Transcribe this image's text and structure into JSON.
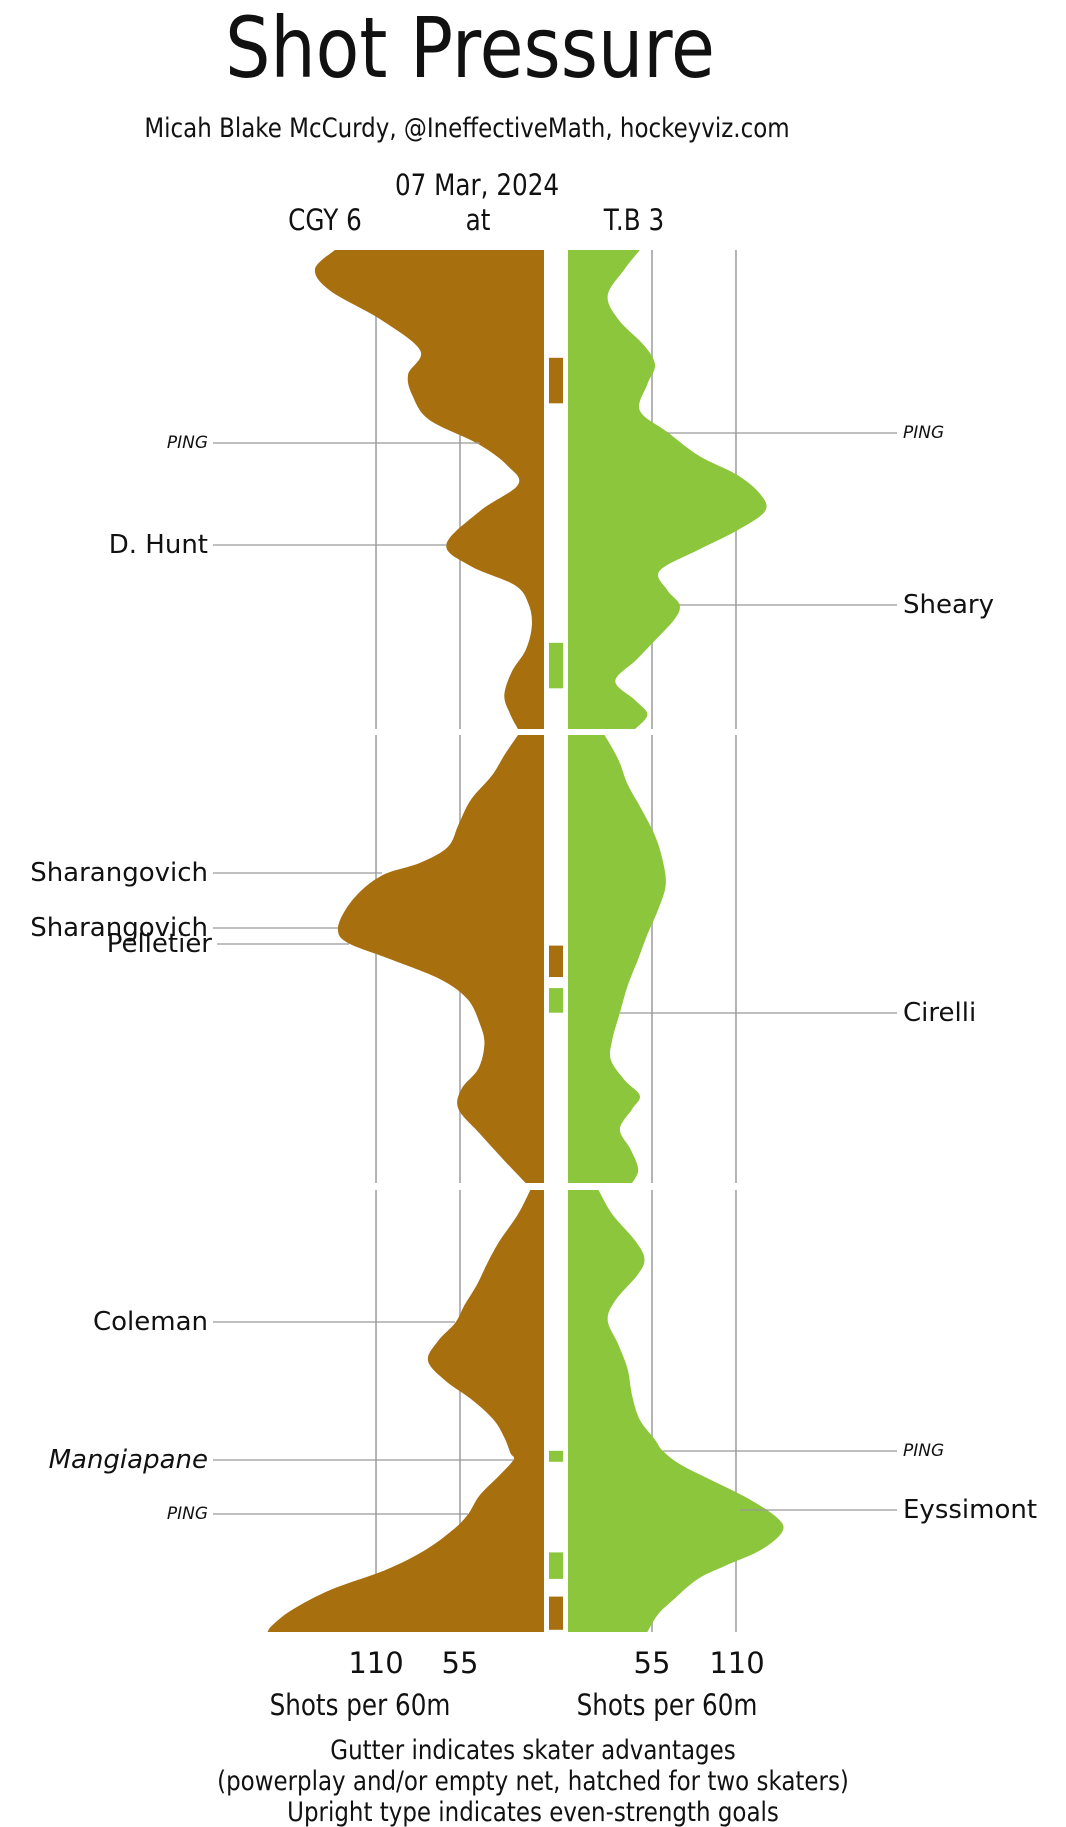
{
  "title": "Shot Pressure",
  "credit": "Micah Blake McCurdy, @IneffectiveMath, hockeyviz.com",
  "game": {
    "date": "07 Mar, 2024",
    "away_team": "CGY 6",
    "at_label": "at",
    "home_team": "T.B 3"
  },
  "axis": {
    "left_ticks": [
      "110",
      "55"
    ],
    "right_ticks": [
      "55",
      "110"
    ],
    "left_axis_label": "Shots per 60m",
    "right_axis_label": "Shots per 60m"
  },
  "footnote": {
    "line1": "Gutter indicates skater advantages",
    "line2": "(powerplay and/or empty net, hatched for two skaters)",
    "line3": "Upright type indicates even-strength goals"
  },
  "colors": {
    "away": "#a76f0e",
    "home": "#8cc63c",
    "grid": "#b4b4b4",
    "pointer": "#999999",
    "text": "#111111"
  },
  "chart_data": {
    "type": "area",
    "title": "Shot Pressure",
    "orientation": "mirrored vertical violins over game time (top=0 min, bottom=60 min)",
    "value_axis": {
      "label": "Shots per 60m",
      "ticks": [
        55,
        110
      ]
    },
    "periods_minutes": [
      [
        0,
        20
      ],
      [
        20,
        40
      ],
      [
        40,
        60
      ]
    ],
    "legend": {
      "away": "CGY (brown, left)",
      "home": "T.B (green, right)"
    },
    "series": [
      {
        "name": "CGY",
        "side": "left",
        "color_key": "away",
        "samples_by_period": [
          [
            [
              0,
              137
            ],
            [
              0.8,
              150
            ],
            [
              1.7,
              140
            ],
            [
              2.9,
              107
            ],
            [
              4.2,
              81
            ],
            [
              5.2,
              89
            ],
            [
              6.1,
              86
            ],
            [
              7.1,
              75
            ],
            [
              8.1,
              43
            ],
            [
              9.0,
              24
            ],
            [
              9.8,
              17
            ],
            [
              10.9,
              42
            ],
            [
              12.3,
              64
            ],
            [
              13.2,
              48
            ],
            [
              14.0,
              19
            ],
            [
              14.8,
              10
            ],
            [
              15.7,
              8
            ],
            [
              16.7,
              12
            ],
            [
              17.6,
              21
            ],
            [
              18.6,
              26
            ],
            [
              19.4,
              22
            ],
            [
              20,
              17
            ]
          ],
          [
            [
              20,
              17
            ],
            [
              20.9,
              26
            ],
            [
              21.8,
              34
            ],
            [
              22.9,
              48
            ],
            [
              24.0,
              56
            ],
            [
              25.0,
              63
            ],
            [
              25.7,
              81
            ],
            [
              26.2,
              104
            ],
            [
              26.9,
              119
            ],
            [
              27.8,
              130
            ],
            [
              28.7,
              135
            ],
            [
              29.3,
              128
            ],
            [
              30.0,
              101
            ],
            [
              30.9,
              68
            ],
            [
              31.8,
              50
            ],
            [
              32.9,
              42
            ],
            [
              33.8,
              39
            ],
            [
              34.9,
              43
            ],
            [
              35.8,
              54
            ],
            [
              36.7,
              56
            ],
            [
              37.8,
              42
            ],
            [
              39.0,
              26
            ],
            [
              40,
              12
            ]
          ],
          [
            [
              40,
              9
            ],
            [
              41.1,
              17
            ],
            [
              42.3,
              29
            ],
            [
              43.3,
              37
            ],
            [
              44.3,
              44
            ],
            [
              45.2,
              52
            ],
            [
              46.0,
              58
            ],
            [
              46.8,
              69
            ],
            [
              47.7,
              76
            ],
            [
              48.6,
              65
            ],
            [
              49.5,
              47
            ],
            [
              50.4,
              33
            ],
            [
              51.2,
              26
            ],
            [
              51.9,
              22
            ],
            [
              52.2,
              20
            ],
            [
              52.9,
              29
            ],
            [
              53.8,
              42
            ],
            [
              54.7,
              50
            ],
            [
              55.4,
              60
            ],
            [
              56.3,
              78
            ],
            [
              57.2,
              104
            ],
            [
              58.1,
              140
            ],
            [
              59.0,
              165
            ],
            [
              59.7,
              178
            ],
            [
              60,
              181
            ]
          ]
        ]
      },
      {
        "name": "T.B",
        "side": "right",
        "color_key": "home",
        "samples_by_period": [
          [
            [
              0,
              47
            ],
            [
              0.8,
              37
            ],
            [
              1.9,
              26
            ],
            [
              2.9,
              33
            ],
            [
              4.0,
              50
            ],
            [
              4.8,
              57
            ],
            [
              5.6,
              52
            ],
            [
              6.7,
              47
            ],
            [
              7.6,
              65
            ],
            [
              8.6,
              86
            ],
            [
              9.4,
              111
            ],
            [
              10.2,
              126
            ],
            [
              10.9,
              129
            ],
            [
              11.7,
              111
            ],
            [
              12.5,
              86
            ],
            [
              13.4,
              60
            ],
            [
              14.2,
              65
            ],
            [
              14.8,
              73
            ],
            [
              15.4,
              70
            ],
            [
              16.3,
              57
            ],
            [
              17.1,
              45
            ],
            [
              18.0,
              31
            ],
            [
              18.8,
              44
            ],
            [
              19.4,
              52
            ],
            [
              20,
              44
            ]
          ],
          [
            [
              20,
              24
            ],
            [
              21.1,
              33
            ],
            [
              22.2,
              39
            ],
            [
              23.3,
              48
            ],
            [
              24.5,
              57
            ],
            [
              25.6,
              62
            ],
            [
              26.7,
              64
            ],
            [
              27.8,
              59
            ],
            [
              28.9,
              52
            ],
            [
              30.0,
              46
            ],
            [
              31.2,
              39
            ],
            [
              32.4,
              34
            ],
            [
              33.6,
              29
            ],
            [
              34.5,
              28
            ],
            [
              35.4,
              37
            ],
            [
              36.1,
              47
            ],
            [
              36.7,
              42
            ],
            [
              37.6,
              34
            ],
            [
              38.5,
              41
            ],
            [
              39.4,
              46
            ],
            [
              40,
              42
            ]
          ],
          [
            [
              40,
              20
            ],
            [
              41.1,
              29
            ],
            [
              42.3,
              44
            ],
            [
              43.1,
              50
            ],
            [
              43.8,
              46
            ],
            [
              45.0,
              31
            ],
            [
              45.9,
              26
            ],
            [
              47.0,
              33
            ],
            [
              48.1,
              39
            ],
            [
              49.3,
              42
            ],
            [
              50.4,
              47
            ],
            [
              51.3,
              57
            ],
            [
              51.8,
              62
            ],
            [
              52.4,
              73
            ],
            [
              53.1,
              93
            ],
            [
              54.0,
              119
            ],
            [
              54.9,
              138
            ],
            [
              55.5,
              140
            ],
            [
              56.3,
              126
            ],
            [
              57.0,
              103
            ],
            [
              57.6,
              85
            ],
            [
              58.6,
              68
            ],
            [
              59.2,
              59
            ],
            [
              60,
              52
            ]
          ]
        ]
      }
    ],
    "advantages": [
      {
        "team": "CGY",
        "from_min": 4.5,
        "to_min": 6.4
      },
      {
        "team": "T.B",
        "from_min": 16.4,
        "to_min": 18.3
      },
      {
        "team": "CGY",
        "from_min": 29.4,
        "to_min": 30.8
      },
      {
        "team": "T.B",
        "from_min": 31.3,
        "to_min": 32.4
      },
      {
        "team": "T.B",
        "from_min": 51.8,
        "to_min": 52.3
      },
      {
        "team": "T.B",
        "from_min": 56.4,
        "to_min": 57.6
      },
      {
        "team": "CGY",
        "from_min": 58.4,
        "to_min": 59.9
      }
    ],
    "events": [
      {
        "team": "CGY",
        "label": "PING",
        "minute": 8.1,
        "type": "ping"
      },
      {
        "team": "CGY",
        "label": "D. Hunt",
        "minute": 12.3,
        "type": "even-strength-goal"
      },
      {
        "team": "CGY",
        "label": "Sharangovich",
        "minute": 26.2,
        "type": "even-strength-goal"
      },
      {
        "team": "CGY",
        "label": "Sharangovich",
        "minute": 28.6,
        "type": "even-strength-goal"
      },
      {
        "team": "CGY",
        "label": "Pelletier",
        "minute": 29.3,
        "type": "even-strength-goal"
      },
      {
        "team": "CGY",
        "label": "Coleman",
        "minute": 46.0,
        "type": "even-strength-goal"
      },
      {
        "team": "CGY",
        "label": "Mangiapane",
        "minute": 52.2,
        "type": "advantage-goal"
      },
      {
        "team": "CGY",
        "label": "PING",
        "minute": 54.7,
        "type": "ping"
      },
      {
        "team": "T.B",
        "label": "PING",
        "minute": 7.6,
        "type": "ping"
      },
      {
        "team": "T.B",
        "label": "Sheary",
        "minute": 14.8,
        "type": "even-strength-goal"
      },
      {
        "team": "T.B",
        "label": "Cirelli",
        "minute": 32.4,
        "type": "even-strength-goal"
      },
      {
        "team": "T.B",
        "label": "PING",
        "minute": 51.8,
        "type": "ping"
      },
      {
        "team": "T.B",
        "label": "Eyssimont",
        "minute": 54.5,
        "type": "even-strength-goal"
      }
    ]
  }
}
